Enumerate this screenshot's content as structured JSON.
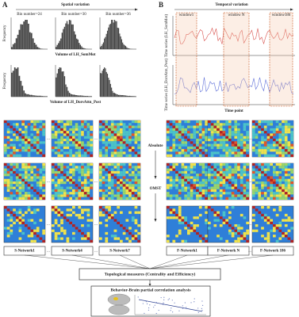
{
  "panel_a": {
    "label": "A",
    "title": "Spatial variation",
    "bin_labels": [
      "Bin number=24",
      "Bin number=30",
      "Bin number=36"
    ],
    "y_label": "Frequency",
    "x_labels": [
      "Volume of LH_SomMot",
      "Volume of LH_DorsAttn_Post"
    ]
  },
  "panel_b": {
    "label": "B",
    "title": "Temporal variation",
    "windows": [
      "window1",
      "window N",
      "window186"
    ],
    "y_labels": [
      "Time series (LH_SomMot)",
      "Time series (LH_DorsAttn_Post)"
    ],
    "x_label": "Time point"
  },
  "steps": [
    "Absolute",
    "OMST"
  ],
  "s_networks": [
    "S-Network1",
    "S-Network4",
    "S-Network7"
  ],
  "f_networks": [
    "F-Network1",
    "F-Network N",
    "F-Network 186"
  ],
  "ellipsis": "...",
  "topology": "Topological measures (Centrality and Efficiency)",
  "analysis": "Behavior-Brain partial correlation analysis"
}
